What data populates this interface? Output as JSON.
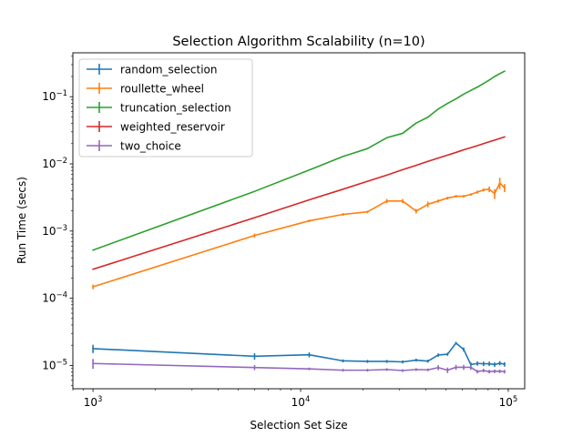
{
  "chart_data": {
    "type": "line",
    "title": "Selection Algorithm Scalability (n=10)",
    "xlabel": "Selection Set Size",
    "ylabel": "Run Time (secs)",
    "xscale": "log",
    "yscale": "log",
    "xlim": [
      800,
      120000
    ],
    "ylim": [
      4.5e-06,
      0.45
    ],
    "grid": false,
    "legend_position": "upper-left",
    "x_ticks": [
      {
        "value": 1000,
        "base": "10",
        "exp": "3"
      },
      {
        "value": 10000,
        "base": "10",
        "exp": "4"
      },
      {
        "value": 100000,
        "base": "10",
        "exp": "5"
      }
    ],
    "y_ticks": [
      {
        "value": 1e-05,
        "base": "10",
        "exp": "−5"
      },
      {
        "value": 0.0001,
        "base": "10",
        "exp": "−4"
      },
      {
        "value": 0.001,
        "base": "10",
        "exp": "−3"
      },
      {
        "value": 0.01,
        "base": "10",
        "exp": "−2"
      },
      {
        "value": 0.1,
        "base": "10",
        "exp": "−1"
      }
    ],
    "series": [
      {
        "name": "random_selection",
        "color": "#1f77b4",
        "x": [
          1000,
          6000,
          11000,
          16000,
          21000,
          26000,
          31000,
          36000,
          41000,
          46000,
          51000,
          56000,
          61000,
          66000,
          71000,
          76000,
          81000,
          86000,
          91000,
          96000
        ],
        "y": [
          1.78e-05,
          1.37e-05,
          1.44e-05,
          1.17e-05,
          1.15e-05,
          1.15e-05,
          1.13e-05,
          1.2e-05,
          1.16e-05,
          1.43e-05,
          1.47e-05,
          2.15e-05,
          1.73e-05,
          1.03e-05,
          1.07e-05,
          1.06e-05,
          1.06e-05,
          1.03e-05,
          1.08e-05,
          1.04e-05
        ],
        "err": [
          2.5e-06,
          1.5e-06,
          1.2e-06,
          6e-07,
          6e-07,
          6e-07,
          6e-07,
          6e-07,
          6e-07,
          8e-07,
          8e-07,
          1e-06,
          1.2e-06,
          8e-07,
          8e-07,
          8e-07,
          8e-07,
          8e-07,
          8e-07,
          8e-07
        ]
      },
      {
        "name": "roullette_wheel",
        "color": "#ff7f0e",
        "x": [
          1000,
          6000,
          11000,
          16000,
          21000,
          26000,
          31000,
          36000,
          41000,
          46000,
          51000,
          56000,
          61000,
          66000,
          71000,
          76000,
          81000,
          86000,
          91000,
          96000
        ],
        "y": [
          0.000148,
          0.00086,
          0.00142,
          0.00177,
          0.00193,
          0.0028,
          0.0028,
          0.00198,
          0.0025,
          0.0028,
          0.0031,
          0.0033,
          0.0033,
          0.0035,
          0.0038,
          0.0041,
          0.0042,
          0.0036,
          0.0052,
          0.0044
        ],
        "err": [
          1.2e-05,
          6e-05,
          6e-05,
          8e-05,
          8e-05,
          0.0002,
          0.0002,
          0.00015,
          0.00025,
          0.00015,
          0.00015,
          0.00015,
          0.00015,
          0.00015,
          0.0002,
          0.0002,
          0.0004,
          0.0006,
          0.001,
          0.0006
        ]
      },
      {
        "name": "truncation_selection",
        "color": "#2ca02c",
        "x": [
          1000,
          6000,
          11000,
          16000,
          21000,
          26000,
          31000,
          36000,
          41000,
          46000,
          51000,
          56000,
          61000,
          66000,
          71000,
          76000,
          81000,
          86000,
          91000,
          96000
        ],
        "y": [
          0.00052,
          0.0039,
          0.0081,
          0.0129,
          0.0169,
          0.0245,
          0.0285,
          0.0405,
          0.0495,
          0.0655,
          0.0795,
          0.093,
          0.109,
          0.124,
          0.139,
          0.157,
          0.177,
          0.2,
          0.22,
          0.24
        ],
        "err": [
          0,
          0,
          0,
          0,
          0,
          0,
          0,
          0,
          0,
          0,
          0,
          0,
          0,
          0,
          0,
          0,
          0,
          0,
          0,
          0
        ]
      },
      {
        "name": "weighted_reservoir",
        "color": "#d62728",
        "x": [
          1000,
          6000,
          11000,
          16000,
          21000,
          26000,
          31000,
          36000,
          41000,
          46000,
          51000,
          56000,
          61000,
          66000,
          71000,
          76000,
          81000,
          86000,
          91000,
          96000
        ],
        "y": [
          0.00027,
          0.00158,
          0.00292,
          0.0042,
          0.0055,
          0.0068,
          0.0082,
          0.0095,
          0.0109,
          0.0122,
          0.0135,
          0.0148,
          0.0162,
          0.0174,
          0.0187,
          0.02,
          0.0213,
          0.0226,
          0.0239,
          0.0252
        ],
        "err": [
          0,
          0,
          0,
          0,
          0,
          0,
          0,
          0,
          0,
          0,
          0,
          0,
          0,
          0,
          0,
          0,
          0,
          0,
          0,
          0
        ]
      },
      {
        "name": "two_choice",
        "color": "#9467bd",
        "x": [
          1000,
          6000,
          11000,
          16000,
          21000,
          26000,
          31000,
          36000,
          41000,
          46000,
          51000,
          56000,
          61000,
          66000,
          71000,
          76000,
          81000,
          86000,
          91000,
          96000
        ],
        "y": [
          1.07e-05,
          9.3e-06,
          8.9e-06,
          8.5e-06,
          8.5e-06,
          8.7e-06,
          8.4e-06,
          8.7e-06,
          8.6e-06,
          9.3e-06,
          8.5e-06,
          9.4e-06,
          9.4e-06,
          9.4e-06,
          8.1e-06,
          8.4e-06,
          8.1e-06,
          8.2e-06,
          8.2e-06,
          8.1e-06
        ],
        "err": [
          1.8e-06,
          8e-07,
          4e-07,
          4e-07,
          4e-07,
          4e-07,
          4e-07,
          4e-07,
          4e-07,
          8e-07,
          8e-07,
          8e-07,
          8e-07,
          8e-07,
          5e-07,
          5e-07,
          5e-07,
          5e-07,
          5e-07,
          5e-07
        ]
      }
    ]
  }
}
